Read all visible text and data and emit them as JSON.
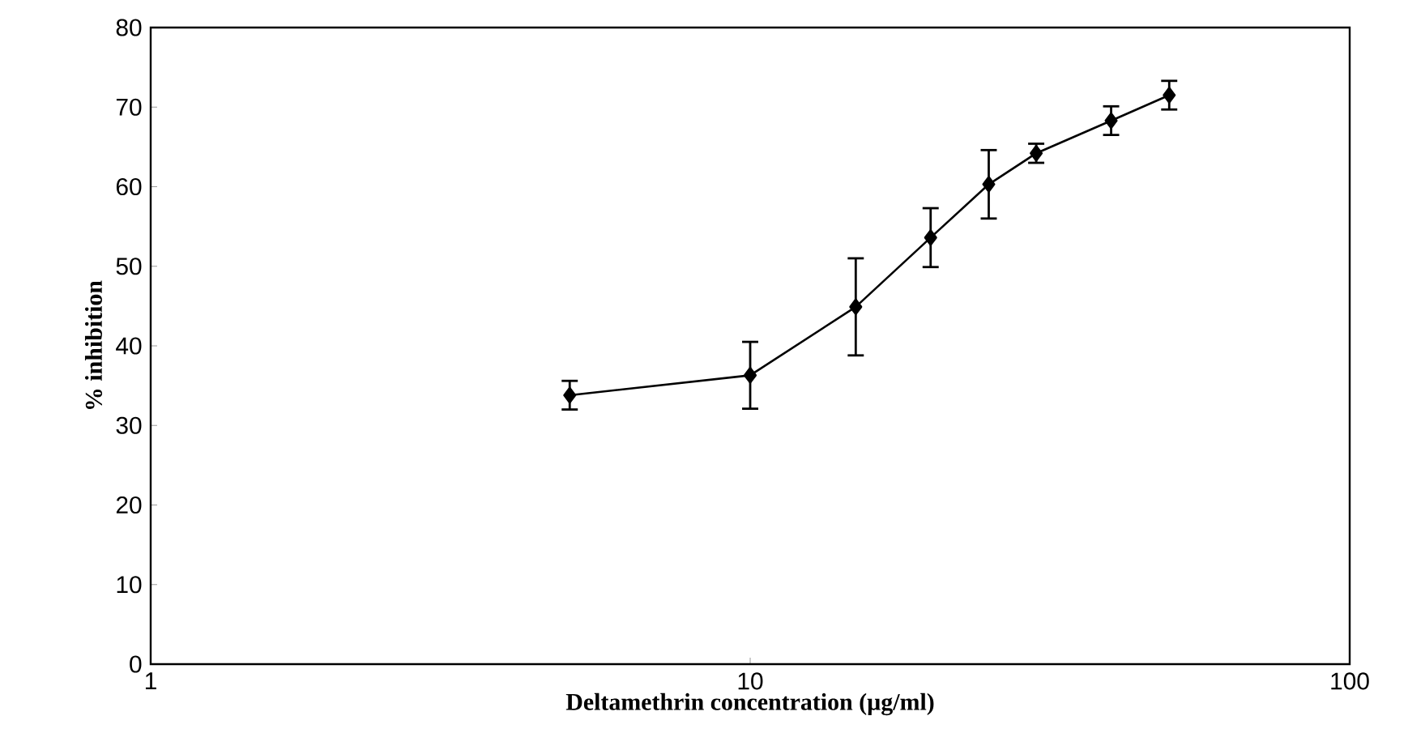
{
  "chart_data": {
    "type": "line",
    "xlabel": "Deltamethrin concentration (µg/ml)",
    "ylabel": "% inhibition",
    "x": [
      5,
      10,
      15,
      20,
      25,
      30,
      40,
      50
    ],
    "series": [
      {
        "color": "#000000",
        "values": [
          33.8,
          36.3,
          44.9,
          53.6,
          60.3,
          64.2,
          68.3,
          71.5
        ],
        "errors": [
          1.8,
          4.2,
          6.1,
          3.7,
          4.3,
          1.2,
          1.8,
          1.8
        ]
      }
    ],
    "log": "x",
    "xlim": [
      1,
      100
    ],
    "xticks": [
      1,
      10,
      100
    ],
    "ylim": [
      0,
      80
    ],
    "yticks": [
      0,
      10,
      20,
      30,
      40,
      50,
      60,
      70,
      80
    ],
    "grid": false,
    "marker": "diamond",
    "line_style": "solid"
  }
}
